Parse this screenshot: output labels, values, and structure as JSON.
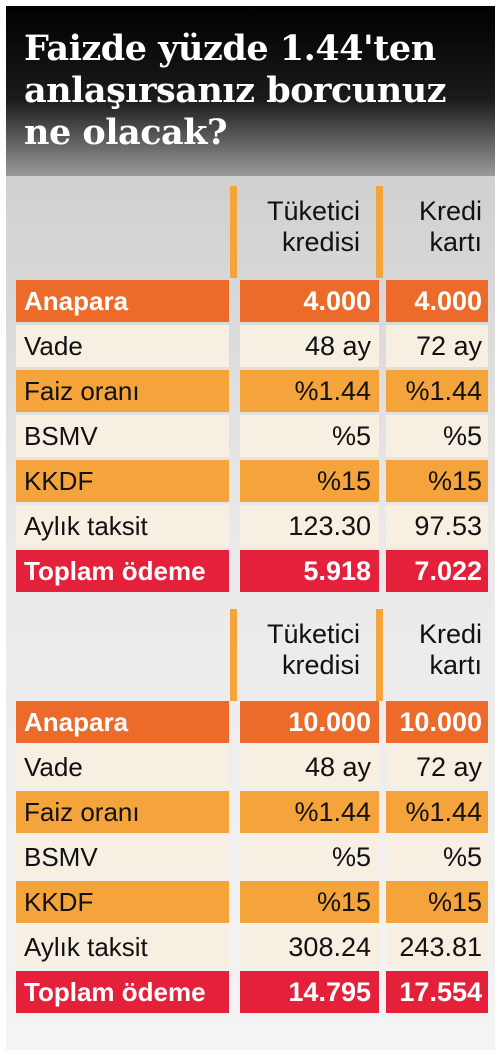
{
  "title": {
    "line1": "Faizde yüzde 1.44'ten",
    "line2": "anlaşırsanız borcunuz",
    "line3": "ne olacak?"
  },
  "colors": {
    "orange": "#ec6a2a",
    "amber": "#f5a43c",
    "red": "#e5203a",
    "cream": "#f6efe2"
  },
  "tables": [
    {
      "col1": [
        "Tüketici",
        "kredisi"
      ],
      "col2": [
        "Kredi",
        "kartı"
      ],
      "rows": [
        {
          "label": "Anapara",
          "v1": "4.000",
          "v2": "4.000"
        },
        {
          "label": "Vade",
          "v1": "48 ay",
          "v2": "72 ay"
        },
        {
          "label": "Faiz oranı",
          "v1": "%1.44",
          "v2": "%1.44"
        },
        {
          "label": "BSMV",
          "v1": "%5",
          "v2": "%5"
        },
        {
          "label": "KKDF",
          "v1": "%15",
          "v2": "%15"
        },
        {
          "label": "Aylık taksit",
          "v1": "123.30",
          "v2": "97.53"
        },
        {
          "label": "Toplam ödeme",
          "v1": "5.918",
          "v2": "7.022"
        }
      ]
    },
    {
      "col1": [
        "Tüketici",
        "kredisi"
      ],
      "col2": [
        "Kredi",
        "kartı"
      ],
      "rows": [
        {
          "label": "Anapara",
          "v1": "10.000",
          "v2": "10.000"
        },
        {
          "label": "Vade",
          "v1": "48 ay",
          "v2": "72 ay"
        },
        {
          "label": "Faiz oranı",
          "v1": "%1.44",
          "v2": "%1.44"
        },
        {
          "label": "BSMV",
          "v1": "%5",
          "v2": "%5"
        },
        {
          "label": "KKDF",
          "v1": "%15",
          "v2": "%15"
        },
        {
          "label": "Aylık taksit",
          "v1": "308.24",
          "v2": "243.81"
        },
        {
          "label": "Toplam ödeme",
          "v1": "14.795",
          "v2": "17.554"
        }
      ]
    }
  ]
}
